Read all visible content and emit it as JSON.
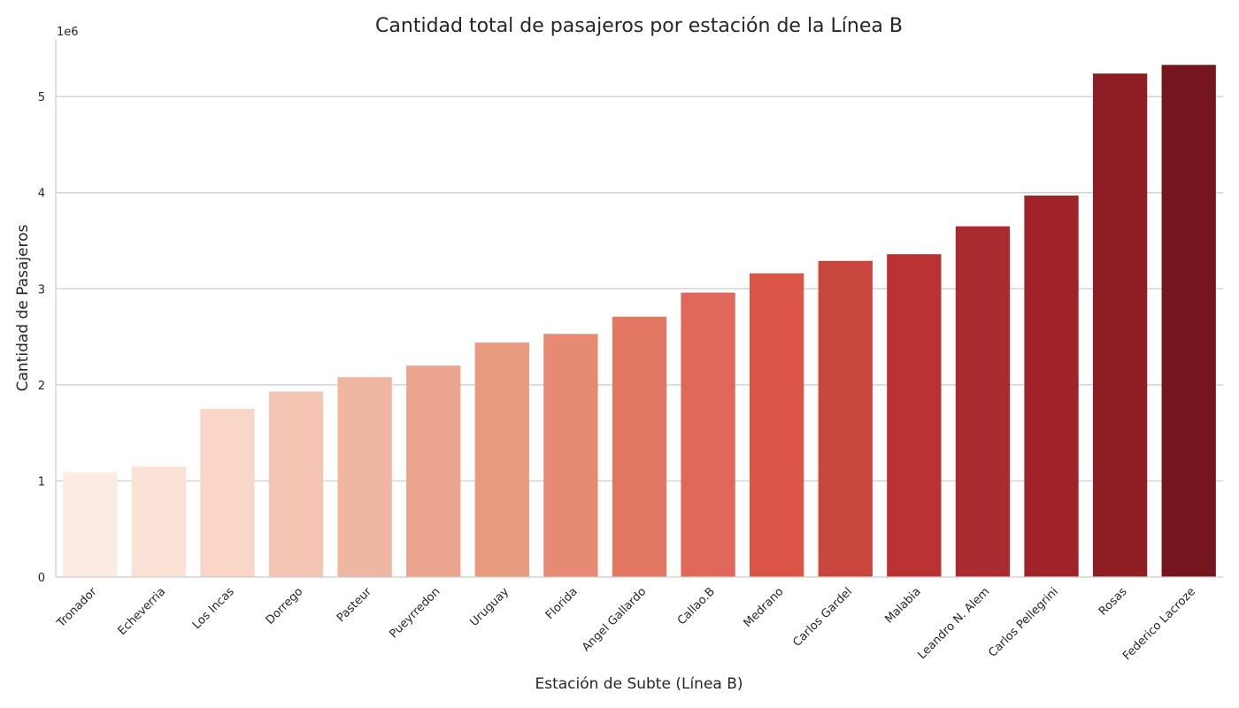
{
  "chart_data": {
    "type": "bar",
    "title": "Cantidad total de pasajeros por estación de la Línea B",
    "xlabel": "Estación de Subte (Línea B)",
    "ylabel": "Cantidad de Pasajeros",
    "y_offset_label": "1e6",
    "y_scale": 1000000,
    "ylim": [
      0,
      5600000
    ],
    "yticks": [
      0,
      1000000,
      2000000,
      3000000,
      4000000,
      5000000
    ],
    "ytick_labels": [
      "0",
      "1",
      "2",
      "3",
      "4",
      "5"
    ],
    "grid": "horizontal",
    "categories": [
      "Tronador",
      "Echeverria",
      "Los Incas",
      "Dorrego",
      "Pasteur",
      "Pueyrredon",
      "Uruguay",
      "Florida",
      "Angel Gallardo",
      "Callao.B",
      "Medrano",
      "Carlos Gardel",
      "Malabia",
      "Leandro N. Alem",
      "Carlos Pellegrini",
      "Rosas",
      "Federico Lacroze"
    ],
    "values": [
      1090000,
      1150000,
      1750000,
      1930000,
      2080000,
      2200000,
      2440000,
      2530000,
      2710000,
      2960000,
      3160000,
      3290000,
      3360000,
      3650000,
      3970000,
      5240000,
      5330000
    ],
    "colors": [
      "#fcebe3",
      "#fbe2d6",
      "#fad6c9",
      "#f5c5b3",
      "#efb7a1",
      "#eba48d",
      "#e99b80",
      "#e78a73",
      "#e37862",
      "#e0685a",
      "#db5547",
      "#c9463f",
      "#bb3235",
      "#aa2b2f",
      "#9f2329",
      "#8e1e24",
      "#75161f"
    ]
  }
}
